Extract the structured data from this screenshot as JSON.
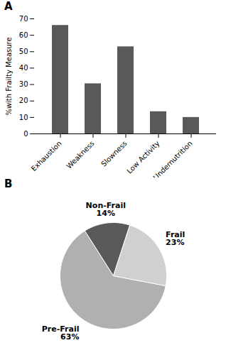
{
  "chart_data": [
    {
      "type": "bar",
      "title": "A",
      "categories": [
        "Exhaustion",
        "Weakness",
        "Slowness",
        "Low Activity",
        "Undernutrition"
      ],
      "values": [
        66,
        30.5,
        53,
        13.5,
        10
      ],
      "color": "#595959",
      "ylabel": "%with Frailty Measure",
      "ylim": [
        0,
        70
      ],
      "yticks": [
        0,
        10,
        20,
        30,
        40,
        50,
        60,
        70
      ],
      "grid": false
    },
    {
      "type": "pie",
      "title": "B",
      "categories": [
        "Non-Frail",
        "Pre-Frail",
        "Frail"
      ],
      "values": [
        14,
        63,
        23
      ],
      "value_labels": [
        "14%",
        "63%",
        "23%"
      ],
      "colors": [
        "#595959",
        "#b0b0b0",
        "#d0d0d0"
      ],
      "data_labels": true
    }
  ]
}
